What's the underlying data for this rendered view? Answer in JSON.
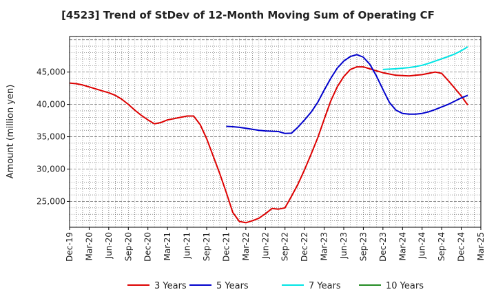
{
  "chart_data": {
    "type": "line",
    "title": "[4523]  Trend of StDev of 12-Month Moving Sum of Operating CF",
    "xlabel": "",
    "ylabel": "Amount (million yen)",
    "ylim": [
      21000,
      50500
    ],
    "y_ticks": [
      25000,
      30000,
      35000,
      40000,
      45000
    ],
    "y_tick_labels": [
      "25,000",
      "30,000",
      "35,000",
      "40,000",
      "45,000"
    ],
    "x_tick_labels": [
      "Dec-19",
      "Mar-20",
      "Jun-20",
      "Sep-20",
      "Dec-20",
      "Mar-21",
      "Jun-21",
      "Sep-21",
      "Dec-21",
      "Mar-22",
      "Jun-22",
      "Sep-22",
      "Dec-22",
      "Mar-23",
      "Jun-23",
      "Sep-23",
      "Dec-23",
      "Mar-24",
      "Jun-24",
      "Sep-24",
      "Dec-24",
      "Mar-25"
    ],
    "x_start": "Dec-19",
    "x_months": 63,
    "legend_position": "bottom",
    "series": [
      {
        "name": "3 Years",
        "color": "#dd0000",
        "start_month": 0,
        "values": [
          43300,
          43200,
          43000,
          42700,
          42400,
          42100,
          41800,
          41400,
          40800,
          40000,
          39100,
          38300,
          37600,
          37000,
          37200,
          37600,
          37800,
          38000,
          38200,
          38200,
          36900,
          34700,
          32000,
          29300,
          26400,
          23300,
          21900,
          21700,
          22000,
          22400,
          23100,
          23900,
          23800,
          24000,
          25800,
          27700,
          29900,
          32300,
          34800,
          37700,
          40500,
          42700,
          44300,
          45400,
          45800,
          45800,
          45500,
          45200,
          44900,
          44700,
          44500,
          44450,
          44400,
          44500,
          44600,
          44800,
          45000,
          44800,
          43700,
          42500,
          41300,
          39900
        ]
      },
      {
        "name": "5 Years",
        "color": "#0000cc",
        "start_month": 24,
        "values": [
          36600,
          36550,
          36450,
          36300,
          36150,
          36000,
          35900,
          35850,
          35800,
          35500,
          35550,
          36500,
          37600,
          38800,
          40300,
          42200,
          44000,
          45600,
          46700,
          47400,
          47700,
          47300,
          46200,
          44400,
          42300,
          40300,
          39100,
          38600,
          38500,
          38500,
          38600,
          38850,
          39200,
          39600,
          40000,
          40500,
          41000,
          41400
        ]
      },
      {
        "name": "7 Years",
        "color": "#00e5e5",
        "start_month": 48,
        "values": [
          45400,
          45450,
          45500,
          45600,
          45700,
          45850,
          46050,
          46350,
          46700,
          47050,
          47400,
          47800,
          48300,
          48900
        ]
      },
      {
        "name": "10 Years",
        "color": "#228b22",
        "start_month": 0,
        "values": []
      }
    ]
  }
}
